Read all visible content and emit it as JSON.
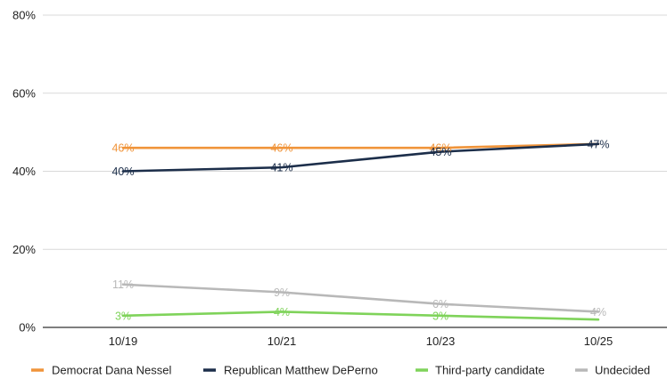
{
  "chart_data": {
    "type": "line",
    "categories": [
      "10/19",
      "10/21",
      "10/23",
      "10/25"
    ],
    "ylim": [
      0,
      80
    ],
    "yticks": [
      "0%",
      "20%",
      "40%",
      "60%",
      "80%"
    ],
    "ytick_values": [
      0,
      20,
      40,
      60,
      80
    ],
    "grid": true,
    "legend_position": "bottom",
    "series": [
      {
        "name": "Democrat Dana Nessel",
        "color": "#f0943a",
        "values": [
          46,
          46,
          46,
          47
        ],
        "labels": [
          "46%",
          "46%",
          "46%",
          ""
        ]
      },
      {
        "name": "Republican Matthew DePerno",
        "color": "#1c2e4a",
        "values": [
          40,
          41,
          45,
          47
        ],
        "labels": [
          "40%",
          "41%",
          "45%",
          "47%"
        ]
      },
      {
        "name": "Third-party candidate",
        "color": "#7fd35a",
        "values": [
          3,
          4,
          3,
          2
        ],
        "labels": [
          "3%",
          "4%",
          "3%",
          ""
        ]
      },
      {
        "name": "Undecided",
        "color": "#b8b8b8",
        "values": [
          11,
          9,
          6,
          4
        ],
        "labels": [
          "11%",
          "9%",
          "6%",
          "4%"
        ]
      }
    ]
  }
}
